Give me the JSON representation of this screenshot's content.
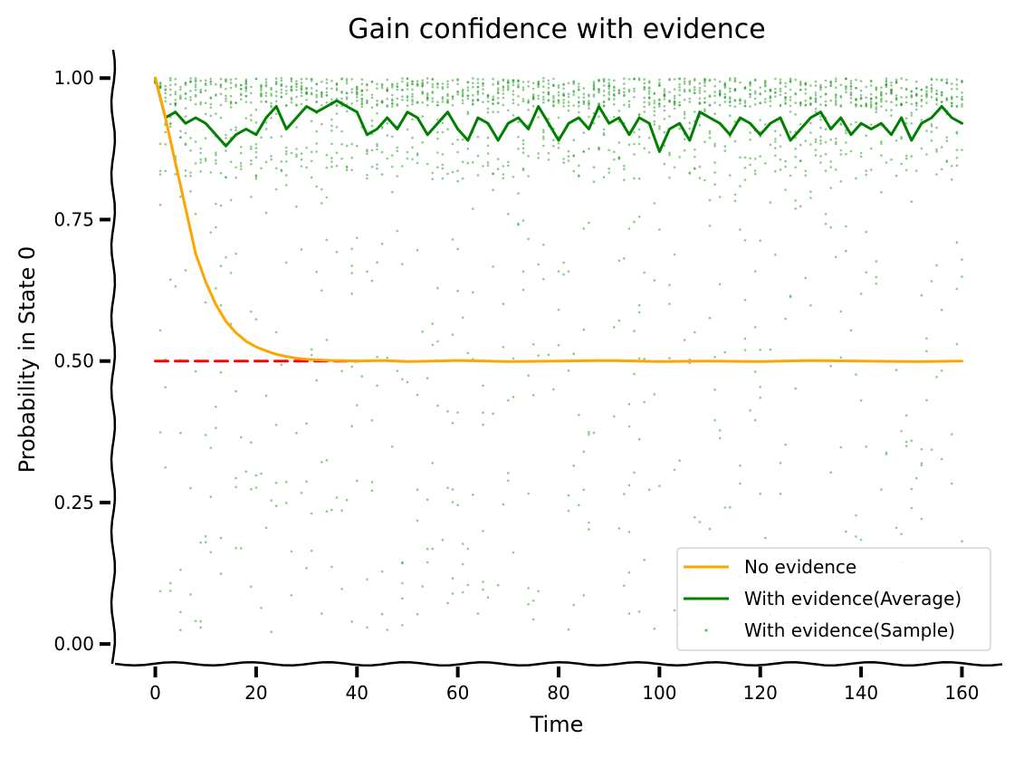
{
  "chart_data": {
    "type": "line",
    "title": "Gain confidence with evidence",
    "xlabel": "Time",
    "ylabel": "Probability in State 0",
    "xlim": [
      -8,
      168
    ],
    "ylim": [
      -0.035,
      1.05
    ],
    "xticks": [
      0,
      20,
      40,
      60,
      80,
      100,
      120,
      140,
      160
    ],
    "yticks": [
      0.0,
      0.25,
      0.5,
      0.75,
      1.0
    ],
    "xtick_labels": [
      "0",
      "20",
      "40",
      "60",
      "80",
      "100",
      "120",
      "140",
      "160"
    ],
    "ytick_labels": [
      "0.00",
      "0.25",
      "0.50",
      "0.75",
      "1.00"
    ],
    "grid": false,
    "legend_position": "bottom-right",
    "legend": [
      "No evidence",
      "With evidence(Average)",
      "With evidence(Sample)"
    ],
    "colors": {
      "no_evidence": "#FFA500",
      "with_evidence_average": "#008000",
      "with_evidence_sample": "#2ca02c",
      "reference": "#FF0000"
    },
    "series": [
      {
        "name": "No evidence",
        "style": "line",
        "x": [
          0,
          2,
          4,
          6,
          8,
          10,
          12,
          14,
          16,
          18,
          20,
          22,
          24,
          26,
          28,
          30,
          32,
          35,
          40,
          45,
          50,
          55,
          60,
          70,
          80,
          90,
          100,
          110,
          120,
          130,
          140,
          150,
          160
        ],
        "y": [
          1.0,
          0.93,
          0.85,
          0.77,
          0.69,
          0.64,
          0.6,
          0.57,
          0.55,
          0.535,
          0.525,
          0.518,
          0.512,
          0.508,
          0.505,
          0.503,
          0.502,
          0.501,
          0.5,
          0.501,
          0.499,
          0.5,
          0.501,
          0.499,
          0.5,
          0.501,
          0.499,
          0.5,
          0.499,
          0.501,
          0.5,
          0.499,
          0.5
        ]
      },
      {
        "name": "With evidence(Average)",
        "style": "line",
        "x": [
          0,
          2,
          4,
          6,
          8,
          10,
          12,
          14,
          16,
          18,
          20,
          22,
          24,
          26,
          28,
          30,
          32,
          34,
          36,
          38,
          40,
          42,
          44,
          46,
          48,
          50,
          52,
          54,
          56,
          58,
          60,
          62,
          64,
          66,
          68,
          70,
          72,
          74,
          76,
          78,
          80,
          82,
          84,
          86,
          88,
          90,
          92,
          94,
          96,
          98,
          100,
          102,
          104,
          106,
          108,
          110,
          112,
          114,
          116,
          118,
          120,
          122,
          124,
          126,
          128,
          130,
          132,
          134,
          136,
          138,
          140,
          142,
          144,
          146,
          148,
          150,
          152,
          154,
          156,
          158,
          160
        ],
        "y": [
          1.0,
          0.93,
          0.94,
          0.92,
          0.93,
          0.92,
          0.9,
          0.88,
          0.9,
          0.91,
          0.9,
          0.93,
          0.95,
          0.91,
          0.93,
          0.95,
          0.94,
          0.95,
          0.96,
          0.95,
          0.94,
          0.9,
          0.91,
          0.93,
          0.91,
          0.94,
          0.93,
          0.9,
          0.92,
          0.94,
          0.91,
          0.89,
          0.93,
          0.92,
          0.89,
          0.92,
          0.93,
          0.91,
          0.95,
          0.92,
          0.89,
          0.92,
          0.93,
          0.91,
          0.95,
          0.92,
          0.93,
          0.9,
          0.93,
          0.92,
          0.87,
          0.91,
          0.92,
          0.89,
          0.94,
          0.93,
          0.92,
          0.9,
          0.93,
          0.92,
          0.9,
          0.92,
          0.93,
          0.89,
          0.91,
          0.93,
          0.94,
          0.91,
          0.93,
          0.9,
          0.92,
          0.91,
          0.92,
          0.9,
          0.93,
          0.89,
          0.92,
          0.93,
          0.95,
          0.93,
          0.92
        ]
      },
      {
        "name": "reference",
        "style": "dashed",
        "x": [
          0,
          10,
          20,
          30,
          40
        ],
        "y": [
          0.5,
          0.5,
          0.5,
          0.5,
          0.5
        ]
      }
    ],
    "sample": {
      "name": "With evidence(Sample)",
      "x_start": 0,
      "x_end": 160,
      "x_step": 1,
      "points_per_step": 14,
      "seed": 7
    }
  }
}
